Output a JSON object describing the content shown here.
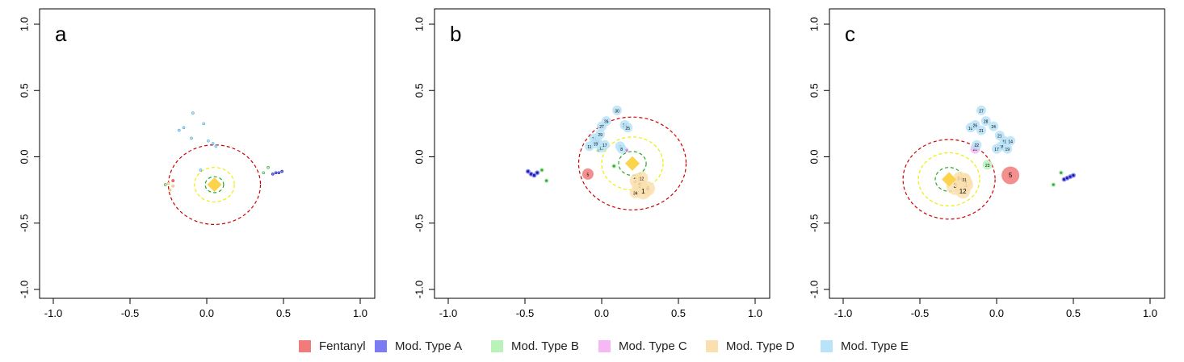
{
  "legend": [
    {
      "label": "Fentanyl",
      "color": "#f17b7b"
    },
    {
      "label": "Mod. Type A",
      "color": "#7b7bf4"
    },
    {
      "label": "Mod. Type B",
      "color": "#b9f3b9"
    },
    {
      "label": "Mod. Type C",
      "color": "#f5b8f5"
    },
    {
      "label": "Mod. Type D",
      "color": "#fae0b0"
    },
    {
      "label": "Mod. Type E",
      "color": "#b8e3f8"
    }
  ],
  "chart_data": [
    {
      "type": "scatter",
      "panel_label": "a",
      "xlim": [
        -1.0,
        1.0
      ],
      "ylim": [
        -1.0,
        1.0
      ],
      "x_ticks": [
        "-1.0",
        "-0.5",
        "0.0",
        "0.5",
        "1.0"
      ],
      "y_ticks": [
        "-1.0",
        "-0.5",
        "0.0",
        "0.5",
        "1.0"
      ],
      "centroid": [
        0.05,
        -0.21
      ],
      "circles": [
        {
          "radius": 0.06,
          "color": "#22aa22"
        },
        {
          "radius": 0.13,
          "color": "#eeee00"
        },
        {
          "radius": 0.3,
          "color": "#cc0000"
        }
      ],
      "series": [
        {
          "type": "Fentanyl",
          "points": [
            {
              "x": -0.22,
              "y": -0.18
            }
          ]
        },
        {
          "type": "Mod. Type A",
          "points": [
            {
              "x": 0.43,
              "y": -0.13
            },
            {
              "x": 0.45,
              "y": -0.12
            },
            {
              "x": 0.47,
              "y": -0.12
            },
            {
              "x": 0.49,
              "y": -0.11
            }
          ]
        },
        {
          "type": "Mod. Type B",
          "points": [
            {
              "x": 0.4,
              "y": -0.08
            },
            {
              "x": 0.37,
              "y": -0.12
            },
            {
              "x": -0.27,
              "y": -0.21
            }
          ]
        },
        {
          "type": "Mod. Type D",
          "points": [
            {
              "x": -0.25,
              "y": -0.2
            },
            {
              "x": -0.24,
              "y": -0.25
            },
            {
              "x": -0.22,
              "y": -0.22
            }
          ]
        },
        {
          "type": "Mod. Type E",
          "points": [
            {
              "x": -0.18,
              "y": 0.2
            },
            {
              "x": -0.15,
              "y": 0.22
            },
            {
              "x": -0.09,
              "y": 0.33
            },
            {
              "x": -0.02,
              "y": 0.25
            },
            {
              "x": 0.01,
              "y": 0.12
            },
            {
              "x": 0.04,
              "y": 0.1
            },
            {
              "x": 0.06,
              "y": 0.08
            },
            {
              "x": -0.04,
              "y": -0.1
            },
            {
              "x": -0.1,
              "y": 0.14
            }
          ]
        }
      ]
    },
    {
      "type": "scatter",
      "panel_label": "b",
      "xlim": [
        -1.0,
        1.0
      ],
      "ylim": [
        -1.0,
        1.0
      ],
      "x_ticks": [
        "-1.0",
        "-0.5",
        "0.0",
        "0.5",
        "1.0"
      ],
      "y_ticks": [
        "-1.0",
        "-0.5",
        "0.0",
        "0.5",
        "1.0"
      ],
      "centroid": [
        0.2,
        -0.05
      ],
      "circles": [
        {
          "radius": 0.09,
          "color": "#22aa22"
        },
        {
          "radius": 0.2,
          "color": "#eeee00"
        },
        {
          "radius": 0.35,
          "color": "#cc0000"
        }
      ],
      "series": [
        {
          "type": "Fentanyl",
          "points": [
            {
              "x": -0.09,
              "y": -0.13,
              "r": 7,
              "label": "5"
            }
          ]
        },
        {
          "type": "Mod. Type A",
          "points": [
            {
              "x": -0.48,
              "y": -0.11
            },
            {
              "x": -0.46,
              "y": -0.13
            },
            {
              "x": -0.44,
              "y": -0.14
            },
            {
              "x": -0.42,
              "y": -0.12
            }
          ]
        },
        {
          "type": "Mod. Type B",
          "points": [
            {
              "x": -0.39,
              "y": -0.1
            },
            {
              "x": -0.36,
              "y": -0.18
            },
            {
              "x": 0.08,
              "y": -0.07
            },
            {
              "x": -0.02,
              "y": 0.05
            }
          ]
        },
        {
          "type": "Mod. Type C",
          "points": [
            {
              "x": 0.16,
              "y": 0.05
            }
          ]
        },
        {
          "type": "Mod. Type D",
          "points": [
            {
              "x": 0.23,
              "y": -0.18,
              "r": 9,
              "label": "31"
            },
            {
              "x": 0.25,
              "y": -0.22,
              "r": 10,
              "label": "2"
            },
            {
              "x": 0.3,
              "y": -0.24,
              "r": 9,
              "label": "4"
            },
            {
              "x": 0.27,
              "y": -0.26,
              "r": 10,
              "label": "1"
            },
            {
              "x": 0.22,
              "y": -0.27,
              "r": 7,
              "label": "34"
            },
            {
              "x": 0.26,
              "y": -0.16,
              "r": 8,
              "label": "12"
            }
          ]
        },
        {
          "type": "Mod. Type E",
          "points": [
            {
              "x": 0.1,
              "y": 0.35,
              "label": "30"
            },
            {
              "x": 0.03,
              "y": 0.27,
              "label": "26"
            },
            {
              "x": 0.15,
              "y": 0.24,
              "label": "24"
            },
            {
              "x": 0.17,
              "y": 0.22,
              "label": "25"
            },
            {
              "x": 0.0,
              "y": 0.23,
              "label": "27"
            },
            {
              "x": -0.01,
              "y": 0.17,
              "label": "29"
            },
            {
              "x": -0.05,
              "y": 0.14,
              "label": "16"
            },
            {
              "x": -0.03,
              "y": 0.12,
              "label": "13"
            },
            {
              "x": -0.04,
              "y": 0.1,
              "label": "19"
            },
            {
              "x": -0.08,
              "y": 0.08,
              "label": "11"
            },
            {
              "x": 0.0,
              "y": 0.07,
              "label": "12"
            },
            {
              "x": 0.12,
              "y": 0.08,
              "label": "7"
            },
            {
              "x": 0.13,
              "y": 0.06,
              "label": "8"
            },
            {
              "x": 0.02,
              "y": 0.09,
              "label": "17"
            }
          ]
        }
      ]
    },
    {
      "type": "scatter",
      "panel_label": "c",
      "xlim": [
        -1.0,
        1.0
      ],
      "ylim": [
        -1.0,
        1.0
      ],
      "x_ticks": [
        "-1.0",
        "-0.5",
        "0.0",
        "0.5",
        "1.0"
      ],
      "y_ticks": [
        "-1.0",
        "-0.5",
        "0.0",
        "0.5",
        "1.0"
      ],
      "centroid": [
        -0.31,
        -0.17
      ],
      "circles": [
        {
          "radius": 0.09,
          "color": "#22aa22"
        },
        {
          "radius": 0.2,
          "color": "#eeee00"
        },
        {
          "radius": 0.3,
          "color": "#cc0000"
        }
      ],
      "series": [
        {
          "type": "Fentanyl",
          "points": [
            {
              "x": 0.09,
              "y": -0.14,
              "r": 11,
              "label": "5"
            }
          ]
        },
        {
          "type": "Mod. Type A",
          "points": [
            {
              "x": 0.44,
              "y": -0.17
            },
            {
              "x": 0.46,
              "y": -0.16
            },
            {
              "x": 0.48,
              "y": -0.15
            },
            {
              "x": 0.5,
              "y": -0.14
            }
          ]
        },
        {
          "type": "Mod. Type B",
          "points": [
            {
              "x": 0.42,
              "y": -0.12
            },
            {
              "x": 0.37,
              "y": -0.21
            },
            {
              "x": -0.06,
              "y": -0.06,
              "label": "23"
            }
          ]
        },
        {
          "type": "Mod. Type C",
          "points": [
            {
              "x": -0.14,
              "y": 0.06,
              "label": "20"
            }
          ]
        },
        {
          "type": "Mod. Type D",
          "points": [
            {
              "x": -0.27,
              "y": -0.22,
              "r": 11,
              "label": "3"
            },
            {
              "x": -0.22,
              "y": -0.19,
              "r": 11,
              "label": "2"
            },
            {
              "x": -0.2,
              "y": -0.21,
              "r": 9,
              "label": "1"
            },
            {
              "x": -0.22,
              "y": -0.26,
              "r": 9,
              "label": "12"
            },
            {
              "x": -0.24,
              "y": -0.16,
              "r": 8,
              "label": "34"
            },
            {
              "x": -0.21,
              "y": -0.17,
              "r": 8,
              "label": "31"
            }
          ]
        },
        {
          "type": "Mod. Type E",
          "points": [
            {
              "x": -0.1,
              "y": 0.35,
              "label": "27"
            },
            {
              "x": -0.07,
              "y": 0.27,
              "label": "28"
            },
            {
              "x": -0.02,
              "y": 0.23,
              "label": "24"
            },
            {
              "x": -0.17,
              "y": 0.22,
              "label": "10"
            },
            {
              "x": -0.14,
              "y": 0.24,
              "label": "26"
            },
            {
              "x": -0.1,
              "y": 0.2,
              "label": "21"
            },
            {
              "x": 0.02,
              "y": 0.16,
              "label": "21"
            },
            {
              "x": 0.05,
              "y": 0.12,
              "label": "11"
            },
            {
              "x": 0.09,
              "y": 0.12,
              "label": "14"
            },
            {
              "x": 0.03,
              "y": 0.08,
              "label": "18"
            },
            {
              "x": 0.07,
              "y": 0.06,
              "label": "19"
            },
            {
              "x": 0.0,
              "y": 0.06,
              "label": "17"
            },
            {
              "x": -0.13,
              "y": 0.09,
              "label": "22"
            }
          ]
        }
      ]
    }
  ]
}
